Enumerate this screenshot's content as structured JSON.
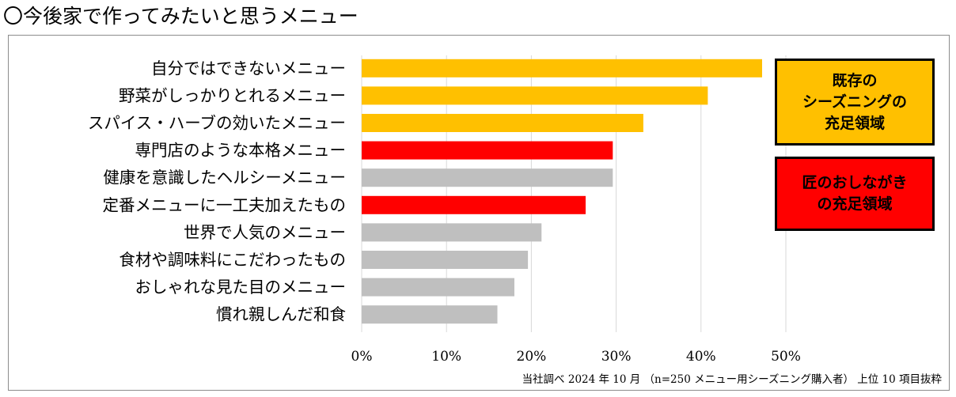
{
  "title": "〇今後家で作ってみたいと思うメニュー",
  "colors": {
    "existing": "#FFC000",
    "takumi": "#FF0000",
    "other": "#BFBFBF",
    "grid": "#D9D9D9"
  },
  "legend": {
    "existing": "既存の\nシーズニングの\n充足領域",
    "takumi": "匠のおしながき\nの充足領域"
  },
  "footnote": "当社調べ 2024 年 10 月 （n=250 メニュー用シーズニング購入者） 上位 10 項目抜粋",
  "chart_data": {
    "type": "bar",
    "orientation": "horizontal",
    "categories": [
      "自分ではできないメニュー",
      "野菜がしっかりとれるメニュー",
      "スパイス・ハーブの効いたメニュー",
      "専門店のような本格メニュー",
      "健康を意識したヘルシーメニュー",
      "定番メニューに一工夫加えたもの",
      "世界で人気のメニュー",
      "食材や調味料にこだわったもの",
      "おしゃれな見た目のメニュー",
      "慣れ親しんだ和食"
    ],
    "values": [
      47.2,
      40.8,
      33.2,
      29.6,
      29.6,
      26.4,
      21.2,
      19.6,
      18.0,
      16.0
    ],
    "groups": [
      "existing",
      "existing",
      "existing",
      "takumi",
      "other",
      "takumi",
      "other",
      "other",
      "other",
      "other"
    ],
    "xlim": [
      0,
      50
    ],
    "xticks": [
      "0%",
      "10%",
      "20%",
      "30%",
      "40%",
      "50%"
    ],
    "grid": true
  }
}
